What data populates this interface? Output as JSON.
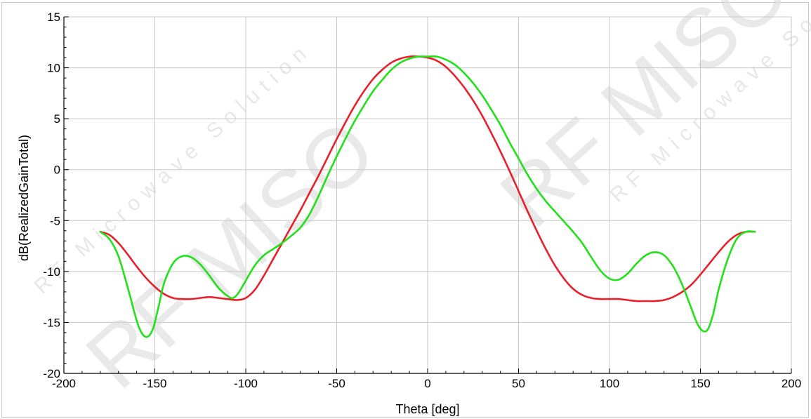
{
  "watermark": {
    "brand": "RF MISO",
    "tagline": "RF Microwave Solution"
  },
  "chart_data": {
    "type": "line",
    "title": "",
    "xlabel": "Theta [deg]",
    "ylabel": "dB(RealizedGainTotal)",
    "xlim": [
      -200,
      200
    ],
    "ylim": [
      -20,
      15
    ],
    "xticks": [
      -200,
      -150,
      -100,
      -50,
      0,
      50,
      100,
      150,
      200
    ],
    "yticks": [
      -20,
      -15,
      -10,
      -5,
      0,
      5,
      10,
      15
    ],
    "grid": true,
    "legend": "none",
    "series": [
      {
        "color": "#e8202a",
        "x": [
          -180,
          -175,
          -170,
          -165,
          -160,
          -155,
          -150,
          -145,
          -140,
          -135,
          -130,
          -125,
          -120,
          -115,
          -110,
          -105,
          -100,
          -95,
          -90,
          -85,
          -80,
          -75,
          -70,
          -65,
          -60,
          -55,
          -50,
          -45,
          -40,
          -35,
          -30,
          -25,
          -20,
          -15,
          -10,
          -5,
          0,
          5,
          10,
          15,
          20,
          25,
          30,
          35,
          40,
          45,
          50,
          55,
          60,
          65,
          70,
          75,
          80,
          85,
          90,
          95,
          100,
          105,
          110,
          115,
          120,
          125,
          130,
          135,
          140,
          145,
          150,
          155,
          160,
          165,
          170,
          175,
          180
        ],
        "y": [
          -6.1,
          -6.4,
          -7.2,
          -8.3,
          -9.5,
          -10.6,
          -11.5,
          -12.2,
          -12.6,
          -12.7,
          -12.7,
          -12.6,
          -12.5,
          -12.6,
          -12.7,
          -12.8,
          -12.6,
          -11.8,
          -10.4,
          -8.8,
          -7.2,
          -5.6,
          -4.0,
          -2.3,
          -0.6,
          1.2,
          3.0,
          4.7,
          6.3,
          7.7,
          8.9,
          9.8,
          10.5,
          10.9,
          11.1,
          11.1,
          11.0,
          10.7,
          10.1,
          9.2,
          8.1,
          6.8,
          5.3,
          3.6,
          1.8,
          -0.1,
          -2.1,
          -4.1,
          -6.0,
          -7.8,
          -9.4,
          -10.7,
          -11.7,
          -12.3,
          -12.6,
          -12.7,
          -12.7,
          -12.7,
          -12.8,
          -12.9,
          -12.9,
          -12.9,
          -12.8,
          -12.5,
          -12.0,
          -11.3,
          -10.3,
          -9.2,
          -8.1,
          -7.1,
          -6.4,
          -6.1,
          -6.1
        ]
      },
      {
        "color": "#22e01a",
        "x": [
          -180,
          -175,
          -170,
          -165,
          -160,
          -157,
          -154,
          -151,
          -148,
          -145,
          -140,
          -135,
          -130,
          -125,
          -120,
          -115,
          -110,
          -107,
          -104,
          -100,
          -95,
          -90,
          -85,
          -80,
          -75,
          -70,
          -65,
          -60,
          -55,
          -50,
          -45,
          -40,
          -35,
          -30,
          -25,
          -20,
          -15,
          -10,
          -5,
          0,
          5,
          10,
          15,
          20,
          25,
          30,
          35,
          40,
          45,
          50,
          55,
          60,
          65,
          70,
          75,
          80,
          85,
          90,
          95,
          100,
          105,
          110,
          115,
          120,
          125,
          130,
          135,
          140,
          145,
          148,
          151,
          154,
          157,
          160,
          165,
          170,
          175,
          180
        ],
        "y": [
          -6.1,
          -6.8,
          -8.5,
          -11.5,
          -14.8,
          -16.1,
          -16.4,
          -15.6,
          -13.5,
          -11.2,
          -9.2,
          -8.5,
          -8.6,
          -9.3,
          -10.4,
          -11.6,
          -12.4,
          -12.6,
          -12.1,
          -10.9,
          -9.4,
          -8.4,
          -7.8,
          -7.2,
          -6.5,
          -5.7,
          -4.4,
          -2.6,
          -0.6,
          1.3,
          3.1,
          4.8,
          6.3,
          7.7,
          8.8,
          9.8,
          10.5,
          10.9,
          11.1,
          11.1,
          11.1,
          10.8,
          10.3,
          9.5,
          8.5,
          7.3,
          5.9,
          4.4,
          2.7,
          1.1,
          -0.5,
          -1.9,
          -3.1,
          -4.1,
          -5.1,
          -6.1,
          -7.2,
          -8.6,
          -9.9,
          -10.7,
          -10.8,
          -10.2,
          -9.2,
          -8.4,
          -8.1,
          -8.4,
          -9.5,
          -11.3,
          -13.6,
          -15.0,
          -15.8,
          -15.7,
          -14.2,
          -11.8,
          -8.8,
          -6.8,
          -6.1,
          -6.1
        ]
      }
    ]
  }
}
